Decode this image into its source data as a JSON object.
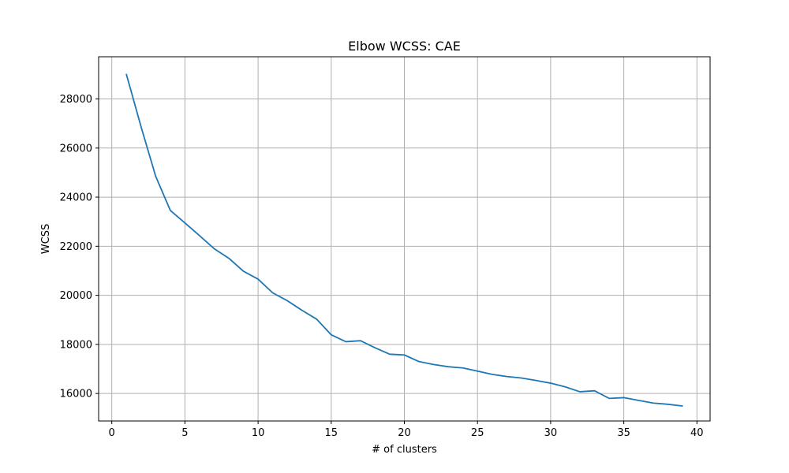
{
  "chart_data": {
    "type": "line",
    "title": "Elbow WCSS: CAE",
    "xlabel": "# of clusters",
    "ylabel": "WCSS",
    "xlim": [
      -0.9,
      40.9
    ],
    "ylim": [
      14880,
      29720
    ],
    "x_ticks": [
      0,
      5,
      10,
      15,
      20,
      25,
      30,
      35,
      40
    ],
    "y_ticks": [
      16000,
      18000,
      20000,
      22000,
      24000,
      26000,
      28000
    ],
    "grid": true,
    "colors": {
      "series": "#1f77b4",
      "grid": "#b0b0b0",
      "axes": "#000000",
      "background": "#ffffff"
    },
    "series": [
      {
        "x": [
          1,
          2,
          3,
          4,
          5,
          6,
          7,
          8,
          9,
          10,
          11,
          12,
          13,
          14,
          15,
          16,
          17,
          18,
          19,
          20,
          21,
          22,
          23,
          24,
          25,
          26,
          27,
          28,
          29,
          30,
          31,
          32,
          33,
          34,
          35,
          36,
          37,
          38,
          39
        ],
        "values": [
          29000,
          26870,
          24850,
          23460,
          22950,
          22430,
          21900,
          21510,
          20980,
          20660,
          20100,
          19780,
          19390,
          19030,
          18390,
          18110,
          18150,
          17860,
          17600,
          17570,
          17300,
          17180,
          17090,
          17040,
          16910,
          16780,
          16690,
          16630,
          16530,
          16420,
          16270,
          16070,
          16110,
          15800,
          15830,
          15720,
          15610,
          15560,
          15490
        ]
      }
    ]
  }
}
